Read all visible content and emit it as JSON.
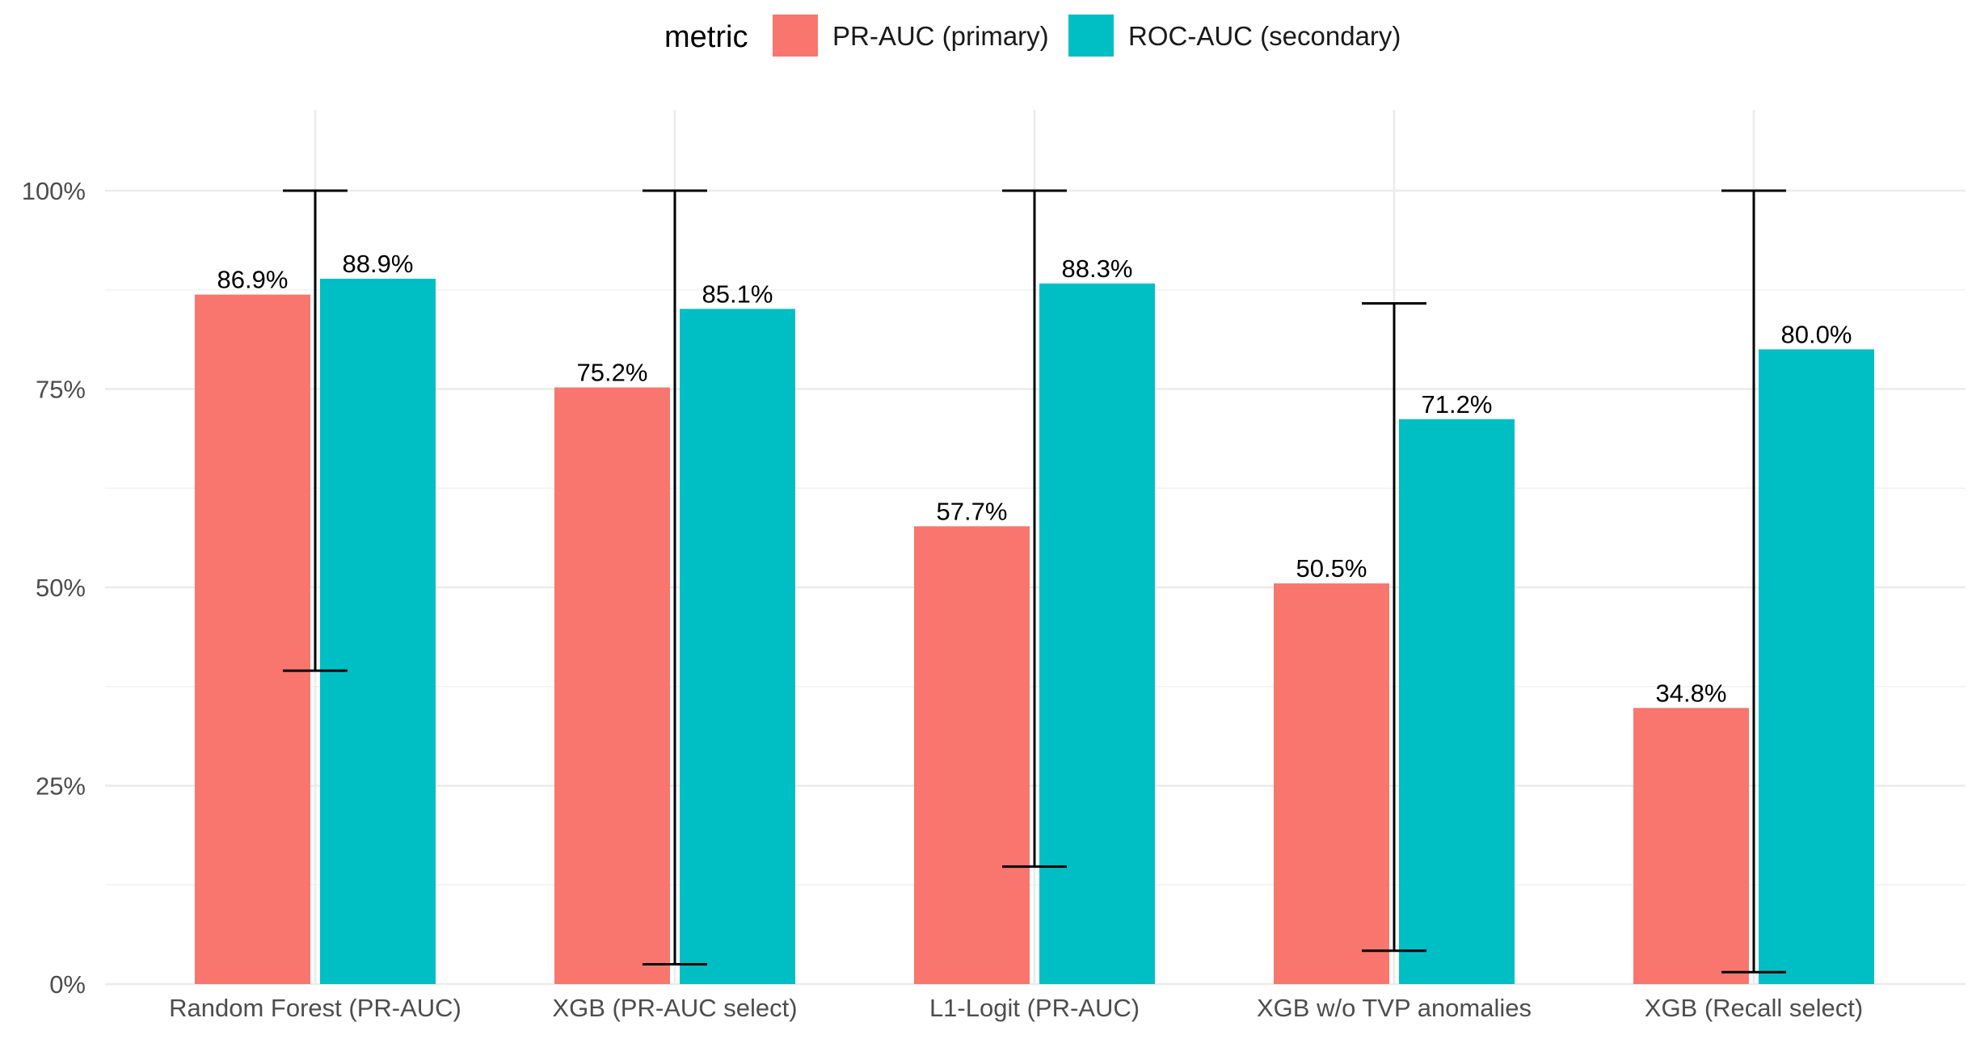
{
  "chart_data": {
    "type": "bar",
    "legend_title": "metric",
    "legend_position": "top",
    "categories": [
      "Random Forest (PR-AUC)",
      "XGB (PR-AUC select)",
      "L1-Logit (PR-AUC)",
      "XGB w/o TVP anomalies",
      "XGB (Recall select)"
    ],
    "series": [
      {
        "name": "PR-AUC (primary)",
        "color": "#F8766D",
        "values": [
          86.9,
          75.2,
          57.7,
          50.5,
          34.8
        ],
        "labels": [
          "86.9%",
          "75.2%",
          "57.7%",
          "50.5%",
          "34.8%"
        ]
      },
      {
        "name": "ROC-AUC (secondary)",
        "color": "#00BFC4",
        "values": [
          88.9,
          85.1,
          88.3,
          71.2,
          80.0
        ],
        "labels": [
          "88.9%",
          "85.1%",
          "88.3%",
          "71.2%",
          "80.0%"
        ]
      }
    ],
    "error_bars": [
      {
        "low": 39.5,
        "high": 100.0
      },
      {
        "low": 2.5,
        "high": 100.0
      },
      {
        "low": 14.8,
        "high": 100.0
      },
      {
        "low": 4.2,
        "high": 85.8
      },
      {
        "low": 1.5,
        "high": 100.0
      }
    ],
    "y_ticks": [
      0,
      25,
      50,
      75,
      100
    ],
    "y_tick_labels": [
      "0%",
      "25%",
      "50%",
      "75%",
      "100%"
    ],
    "ylim": [
      0,
      110
    ],
    "grid": true,
    "xlabel": "",
    "ylabel": "",
    "title": ""
  }
}
